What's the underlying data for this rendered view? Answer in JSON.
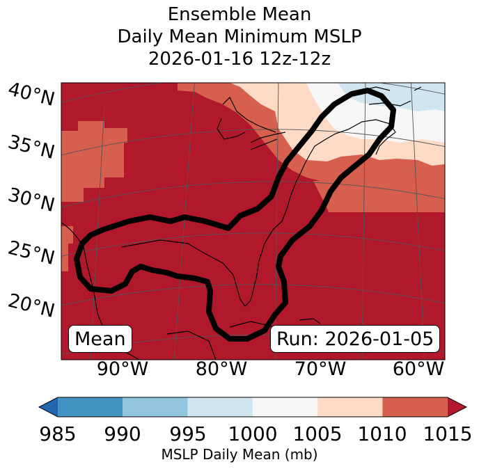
{
  "title": {
    "line1": "Ensemble Mean",
    "line2": "Daily Mean Minimum MSLP",
    "line3": "2026-01-16 12z-12z"
  },
  "map": {
    "lat_labels": [
      "40°N",
      "35°N",
      "30°N",
      "25°N",
      "20°N"
    ],
    "lon_labels": [
      "90°W",
      "80°W",
      "70°W",
      "60°W"
    ],
    "left_box": "Mean",
    "right_box": "Run: 2026-01-05"
  },
  "colorbar": {
    "ticks": [
      "985",
      "990",
      "995",
      "1000",
      "1005",
      "1010",
      "1015"
    ],
    "label": "MSLP Daily Mean (mb)",
    "colors": [
      "#2166ac",
      "#4393c3",
      "#92c5de",
      "#d1e5f0",
      "#f7f7f7",
      "#fddbc7",
      "#d6604d",
      "#b2182b"
    ]
  }
}
